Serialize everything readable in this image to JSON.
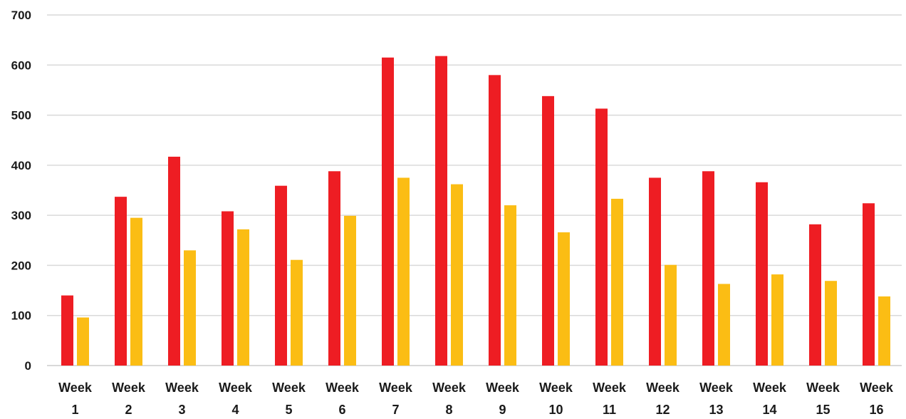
{
  "chart_data": {
    "type": "bar",
    "categories": [
      [
        "Week",
        "1"
      ],
      [
        "Week",
        "2"
      ],
      [
        "Week",
        "3"
      ],
      [
        "Week",
        "4"
      ],
      [
        "Week",
        "5"
      ],
      [
        "Week",
        "6"
      ],
      [
        "Week",
        "7"
      ],
      [
        "Week",
        "8"
      ],
      [
        "Week",
        "9"
      ],
      [
        "Week",
        "10"
      ],
      [
        "Week",
        "11"
      ],
      [
        "Week",
        "12"
      ],
      [
        "Week",
        "13"
      ],
      [
        "Week",
        "14"
      ],
      [
        "Week",
        "15"
      ],
      [
        "Week",
        "16"
      ]
    ],
    "series": [
      {
        "color": "#ee1d23",
        "values": [
          140,
          337,
          417,
          308,
          359,
          388,
          615,
          618,
          580,
          538,
          513,
          375,
          388,
          366,
          282,
          324
        ]
      },
      {
        "color": "#fbbd14",
        "values": [
          96,
          295,
          230,
          272,
          211,
          299,
          375,
          362,
          320,
          266,
          333,
          201,
          163,
          182,
          169,
          138
        ]
      }
    ],
    "yticks": [
      "0",
      "100",
      "200",
      "300",
      "400",
      "500",
      "600",
      "700"
    ],
    "ylim": [
      0,
      700
    ],
    "grid": true,
    "legend": "none",
    "title": "",
    "xlabel": "",
    "ylabel": ""
  }
}
